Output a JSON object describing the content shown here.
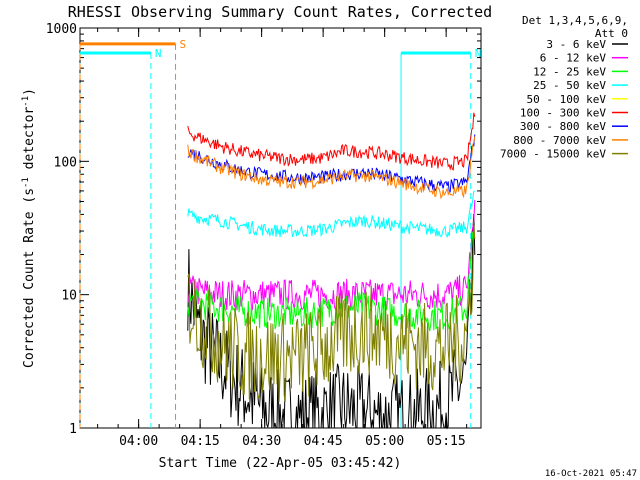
{
  "chart_data": {
    "type": "line",
    "title": "RHESSI Observing Summary Count Rates, Corrected",
    "xlabel": "Start Time (22-Apr-05 03:45:42)",
    "ylabel": "Corrected Count Rate (s",
    "ylabel_sup1": "-1",
    "ylabel_mid": " detector",
    "ylabel_sup2": "-1",
    "ylabel_end": ")",
    "yscale": "log",
    "ylim": [
      1,
      1000
    ],
    "xlim": [
      "03:45:42",
      "05:23:30"
    ],
    "x_ticks": [
      "04:00",
      "04:15",
      "04:30",
      "04:45",
      "05:00",
      "05:15"
    ],
    "y_ticks": [
      "1",
      "10",
      "100",
      "1000"
    ],
    "grid": false,
    "legend_position": "top-right",
    "legend_header": [
      "Det 1,3,4,5,6,9,",
      "Att 0"
    ],
    "series": [
      {
        "name": "3 - 6 keV",
        "color": "#000000",
        "x": [
          "04:12",
          "04:15",
          "04:20",
          "04:25",
          "04:30",
          "04:35",
          "04:40",
          "04:45",
          "04:50",
          "04:55",
          "05:00",
          "05:05",
          "05:10",
          "05:15",
          "05:20",
          "05:22"
        ],
        "values": [
          12,
          5,
          3,
          2,
          1.4,
          1.2,
          1.2,
          1.3,
          1.4,
          1.3,
          1.2,
          1.2,
          1.3,
          1.5,
          2.5,
          25
        ]
      },
      {
        "name": "6 - 12 keV",
        "color": "#ff00ff",
        "x": [
          "04:12",
          "04:15",
          "04:20",
          "04:25",
          "04:30",
          "04:35",
          "04:40",
          "04:45",
          "04:50",
          "04:55",
          "05:00",
          "05:05",
          "05:10",
          "05:15",
          "05:20",
          "05:22"
        ],
        "values": [
          11,
          10.5,
          10,
          10,
          10,
          10,
          10,
          10,
          10,
          10,
          10,
          10,
          10,
          10,
          11,
          40
        ]
      },
      {
        "name": "12 - 25 keV",
        "color": "#00ff00",
        "x": [
          "04:12",
          "04:15",
          "04:20",
          "04:25",
          "04:30",
          "04:35",
          "04:40",
          "04:45",
          "04:50",
          "04:55",
          "05:00",
          "05:05",
          "05:10",
          "05:15",
          "05:20",
          "05:22"
        ],
        "values": [
          9,
          8.5,
          8,
          7.5,
          7.3,
          7.2,
          7.2,
          7.5,
          8,
          8,
          7.5,
          7.2,
          7,
          7,
          8,
          35
        ]
      },
      {
        "name": "25 - 50 keV",
        "color": "#00ffff",
        "x": [
          "04:12",
          "04:15",
          "04:20",
          "04:25",
          "04:30",
          "04:35",
          "04:40",
          "04:45",
          "04:50",
          "04:55",
          "05:00",
          "05:05",
          "05:10",
          "05:15",
          "05:20",
          "05:22"
        ],
        "values": [
          40,
          38,
          36,
          33,
          31,
          30,
          30,
          31,
          34,
          36,
          34,
          32,
          31,
          30,
          32,
          60
        ]
      },
      {
        "name": "50 - 100 keV",
        "color": "#ffff00",
        "x": [],
        "values": []
      },
      {
        "name": "100 - 300 keV",
        "color": "#ff0000",
        "x": [
          "04:12",
          "04:15",
          "04:20",
          "04:25",
          "04:30",
          "04:35",
          "04:40",
          "04:45",
          "04:50",
          "04:55",
          "05:00",
          "05:05",
          "05:10",
          "05:15",
          "05:20",
          "05:22"
        ],
        "values": [
          165,
          150,
          130,
          118,
          110,
          105,
          103,
          106,
          120,
          118,
          113,
          106,
          100,
          95,
          100,
          230
        ]
      },
      {
        "name": "300 - 800 keV",
        "color": "#0000ff",
        "x": [
          "04:12",
          "04:15",
          "04:20",
          "04:25",
          "04:30",
          "04:35",
          "04:40",
          "04:45",
          "04:50",
          "04:55",
          "05:00",
          "05:05",
          "05:10",
          "05:15",
          "05:20",
          "05:22"
        ],
        "values": [
          120,
          110,
          95,
          85,
          80,
          77,
          75,
          76,
          80,
          82,
          78,
          73,
          68,
          64,
          70,
          160
        ]
      },
      {
        "name": "800 - 7000 keV",
        "color": "#ff8000",
        "x": [
          "04:12",
          "04:15",
          "04:20",
          "04:25",
          "04:30",
          "04:35",
          "04:40",
          "04:45",
          "04:50",
          "04:55",
          "05:00",
          "05:05",
          "05:10",
          "05:15",
          "05:20",
          "05:22"
        ],
        "values": [
          120,
          105,
          90,
          80,
          73,
          70,
          70,
          72,
          78,
          78,
          74,
          68,
          62,
          58,
          60,
          150
        ]
      },
      {
        "name": "7000 - 15000 keV",
        "color": "#808000",
        "x": [
          "04:12",
          "04:15",
          "04:20",
          "04:25",
          "04:30",
          "04:35",
          "04:40",
          "04:45",
          "04:50",
          "04:55",
          "05:00",
          "05:05",
          "05:10",
          "05:15",
          "05:20",
          "05:22"
        ],
        "values": [
          9,
          6.5,
          4.5,
          3.5,
          3.5,
          3.4,
          3.4,
          4,
          5,
          5.5,
          5,
          4.5,
          4,
          4,
          5,
          30
        ]
      }
    ],
    "annotations": {
      "night_bars": [
        {
          "label": "N",
          "color": "#00ffff",
          "x_start": "03:45:42",
          "x_end": "04:03",
          "y": 650
        },
        {
          "label": "N",
          "color": "#00ffff",
          "x_start": "05:04",
          "x_end": "05:21",
          "y": 650
        }
      ],
      "saa_bars": [
        {
          "label": "S",
          "color": "#ff8000",
          "x_start": "03:45:42",
          "x_end": "04:09",
          "y": 760
        }
      ]
    },
    "footer_date": "16-Oct-2021 05:47"
  }
}
